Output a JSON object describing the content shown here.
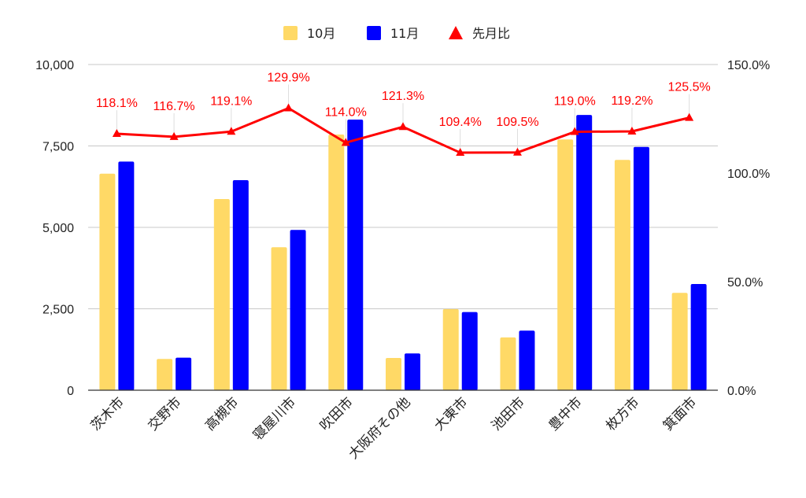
{
  "chart_data": {
    "type": "bar",
    "categories": [
      "茨木市",
      "交野市",
      "高槻市",
      "寝屋川市",
      "吹田市",
      "大阪府その他",
      "大東市",
      "池田市",
      "豊中市",
      "枚方市",
      "箕面市"
    ],
    "series": [
      {
        "name": "10月",
        "type": "bar",
        "axis": "left",
        "color": "#FFD966",
        "values": [
          6650,
          960,
          5870,
          4390,
          7850,
          990,
          2490,
          1620,
          7700,
          7070,
          2990
        ]
      },
      {
        "name": "11月",
        "type": "bar",
        "axis": "left",
        "color": "#0000FF",
        "values": [
          7020,
          1000,
          6450,
          4920,
          8310,
          1130,
          2400,
          1830,
          8450,
          7470,
          3260
        ]
      },
      {
        "name": "先月比",
        "type": "line",
        "axis": "right",
        "color": "#FF0000",
        "values": [
          118.1,
          116.7,
          119.1,
          129.9,
          114.0,
          121.3,
          109.4,
          109.5,
          119.0,
          119.2,
          125.5
        ],
        "labels": [
          "118.1%",
          "116.7%",
          "119.1%",
          "129.9%",
          "114.0%",
          "121.3%",
          "109.4%",
          "109.5%",
          "119.0%",
          "119.2%",
          "125.5%"
        ]
      }
    ],
    "y_left": {
      "ylim": [
        0,
        10000
      ],
      "ticks": [
        0,
        2500,
        5000,
        7500,
        10000
      ],
      "tick_labels": [
        "0",
        "2,500",
        "5,000",
        "7,500",
        "10,000"
      ]
    },
    "y_right": {
      "ylim": [
        0,
        150
      ],
      "ticks": [
        0,
        50,
        100,
        150
      ],
      "tick_labels": [
        "0.0%",
        "50.0%",
        "100.0%",
        "150.0%"
      ]
    },
    "grid": true,
    "legend": {
      "position": "top-center"
    },
    "title": "",
    "xlabel": "",
    "ylabel": ""
  }
}
